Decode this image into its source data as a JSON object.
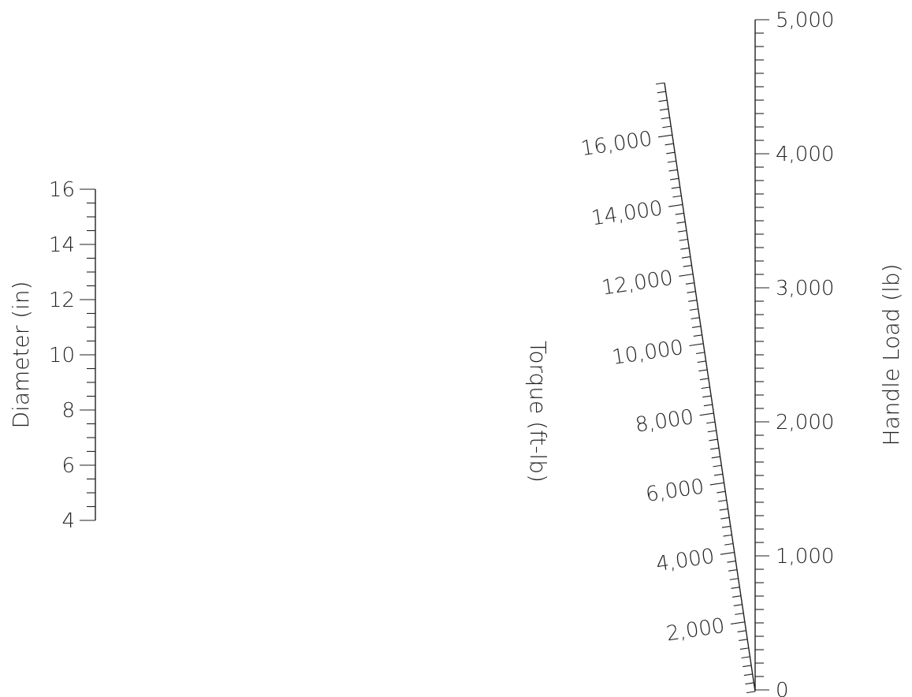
{
  "scales": {
    "diameter": {
      "label": "Diameter (in)",
      "min": 4,
      "max": 16,
      "major_ticks": [
        "4",
        "6",
        "8",
        "10",
        "12",
        "14",
        "16"
      ],
      "minor_step": 0.5
    },
    "torque": {
      "label": "Torque (ft-lb)",
      "min": 0,
      "max": 17500,
      "major_ticks": [
        "2,000",
        "4,000",
        "6,000",
        "8,000",
        "10,000",
        "12,000",
        "14,000",
        "16,000"
      ],
      "minor_step": 250
    },
    "handle_load": {
      "label": "Handle Load (lb)",
      "min": 0,
      "max": 5000,
      "major_ticks": [
        "0",
        "1,000",
        "2,000",
        "3,000",
        "4,000",
        "5,000"
      ],
      "minor_step": 100
    }
  },
  "colors": {
    "ink": "#222222",
    "background": "#ffffff"
  }
}
